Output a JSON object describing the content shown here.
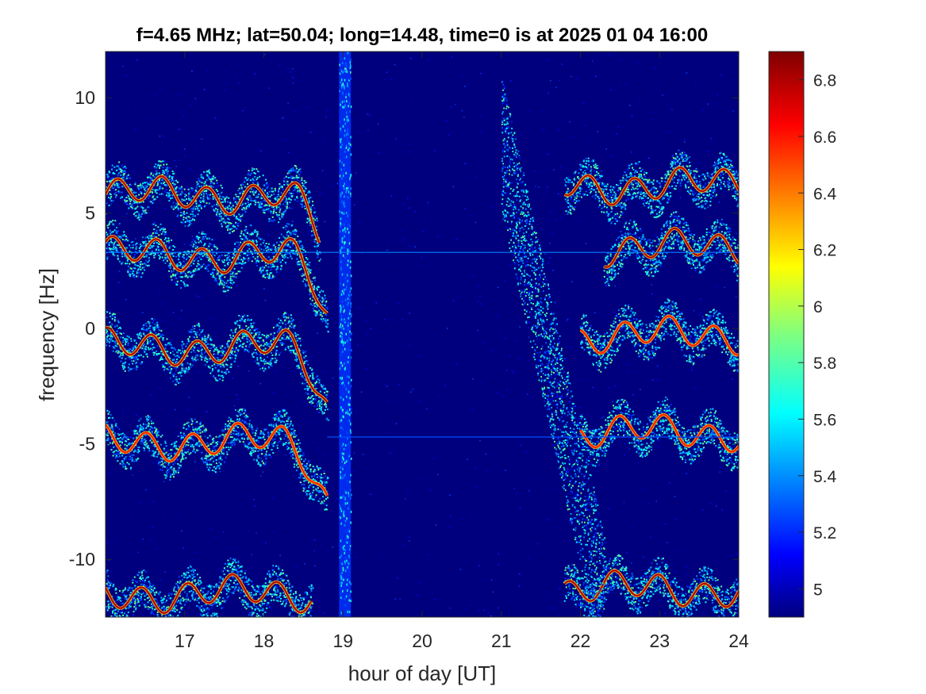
{
  "chart_data": {
    "type": "heatmap",
    "title": "f=4.65 MHz;  lat=50.04; long=14.48, time=0 is at 2025 01 04 16:00",
    "xlabel": "hour of day [UT]",
    "ylabel": "frequency [Hz]",
    "xlim": [
      16.0,
      24.0
    ],
    "ylim": [
      -12.5,
      12.0
    ],
    "xticks": [
      17,
      18,
      19,
      20,
      21,
      22,
      23,
      24
    ],
    "yticks": [
      -10,
      -5,
      0,
      5,
      10
    ],
    "colorbar": {
      "range": [
        4.9,
        6.9
      ],
      "ticks": [
        5,
        5.2,
        5.4,
        5.6,
        5.8,
        6,
        6.2,
        6.4,
        6.6,
        6.8
      ],
      "colormap": "jet"
    },
    "features": [
      {
        "description": "Doppler trace band",
        "center_frequency_hz": 5.8,
        "hours": [
          16.0,
          18.7
        ],
        "intensity": 6.8
      },
      {
        "description": "Doppler trace band",
        "center_frequency_hz": 3.2,
        "hours": [
          16.0,
          18.8
        ],
        "intensity": 6.8
      },
      {
        "description": "Doppler trace band",
        "center_frequency_hz": -0.8,
        "hours": [
          16.0,
          18.8
        ],
        "intensity": 6.8
      },
      {
        "description": "Doppler trace band",
        "center_frequency_hz": -4.9,
        "hours": [
          16.0,
          18.8
        ],
        "intensity": 6.6
      },
      {
        "description": "Doppler trace band",
        "center_frequency_hz": -11.5,
        "hours": [
          16.0,
          18.6
        ],
        "intensity": 6.8
      },
      {
        "description": "Doppler trace band",
        "center_frequency_hz": 6.2,
        "hours": [
          21.8,
          24.0
        ],
        "intensity": 6.8
      },
      {
        "description": "Doppler trace band",
        "center_frequency_hz": 3.5,
        "hours": [
          22.3,
          24.0
        ],
        "intensity": 6.8
      },
      {
        "description": "Doppler trace band",
        "center_frequency_hz": -0.3,
        "hours": [
          22.0,
          24.0
        ],
        "intensity": 6.6
      },
      {
        "description": "Doppler trace band",
        "center_frequency_hz": -4.5,
        "hours": [
          22.0,
          24.0
        ],
        "intensity": 6.6
      },
      {
        "description": "Doppler trace band",
        "center_frequency_hz": -11.3,
        "hours": [
          21.8,
          24.0
        ],
        "intensity": 6.8
      },
      {
        "description": "broadband vertical streak",
        "hours": [
          18.95,
          19.1
        ],
        "intensity": 5.6
      },
      {
        "description": "diffuse spread echo",
        "hours": [
          21.0,
          22.3
        ],
        "intensity": 5.5
      },
      {
        "description": "horizontal line",
        "center_frequency_hz": 3.3,
        "hours": [
          16.0,
          24.0
        ],
        "intensity": 5.4
      },
      {
        "description": "horizontal line",
        "center_frequency_hz": -4.7,
        "hours": [
          18.8,
          24.0
        ],
        "intensity": 5.3
      }
    ]
  },
  "colors": {
    "background_low": "#00007f",
    "colormap_stops": [
      "#00007f",
      "#0000ff",
      "#007fff",
      "#00ffff",
      "#7fff7f",
      "#ffff00",
      "#ff7f00",
      "#ff0000",
      "#7f0000"
    ]
  }
}
